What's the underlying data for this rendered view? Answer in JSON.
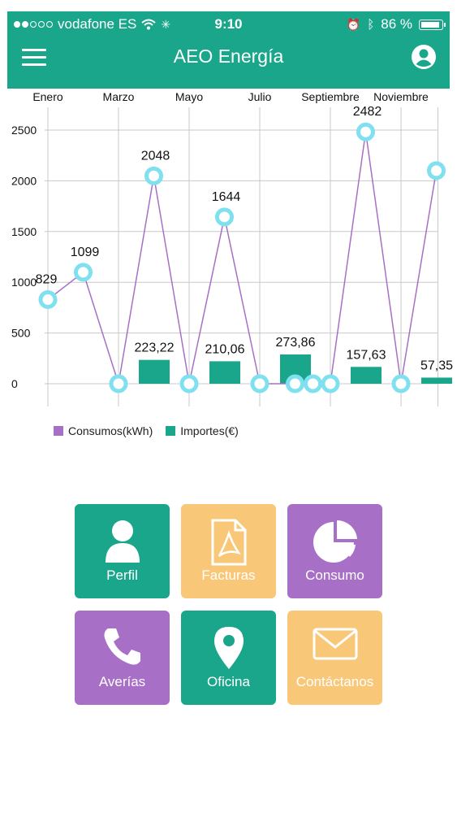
{
  "status_bar": {
    "carrier": "vodafone ES",
    "time": "9:10",
    "battery": "86 %"
  },
  "header": {
    "title": "AEO Energía",
    "menu_icon": "hamburger-menu-icon",
    "profile_icon": "user-circle-icon",
    "color": "#1aa68a"
  },
  "chart_data": {
    "type": "line+bar",
    "top_axis_labels": [
      "Enero",
      "Marzo",
      "Mayo",
      "Julio",
      "Septiembre",
      "Noviembre"
    ],
    "y_ticks": [
      "2500",
      "2000",
      "1500",
      "1000",
      "500",
      "0"
    ],
    "ylim": [
      0,
      2500
    ],
    "series": [
      {
        "name": "Consumos(kWh)",
        "type": "line",
        "color": "#a86fc6",
        "values": [
          829,
          1099,
          0,
          2048,
          0,
          1644,
          0,
          0,
          0,
          2482,
          0,
          2100
        ],
        "labels": [
          "829",
          "1099",
          "",
          "2048",
          "",
          "1644",
          "",
          "",
          "",
          "2482",
          "",
          ""
        ]
      },
      {
        "name": "Importes(€)",
        "type": "bar",
        "color": "#1aa68a",
        "bars": [
          {
            "month_index": 3,
            "value": 223.22,
            "label": "223,22"
          },
          {
            "month_index": 5,
            "value": 210.06,
            "label": "210,06"
          },
          {
            "month_index": 7,
            "value": 273.86,
            "label": "273,86"
          },
          {
            "month_index": 9,
            "value": 157.63,
            "label": "157,63"
          },
          {
            "month_index": 11,
            "value": 57.35,
            "label": "57,35"
          }
        ]
      }
    ],
    "grid": true
  },
  "legend": {
    "consumos": "Consumos(kWh)",
    "importes": "Importes(€)"
  },
  "menu": {
    "perfil": {
      "label": "Perfil",
      "icon": "user-icon",
      "color": "#1aa68a"
    },
    "facturas": {
      "label": "Facturas",
      "icon": "pdf-document-icon",
      "color": "#f8c778"
    },
    "consumo": {
      "label": "Consumo",
      "icon": "pie-chart-icon",
      "color": "#a86fc6"
    },
    "averias": {
      "label": "Averías",
      "icon": "phone-icon",
      "color": "#a86fc6"
    },
    "oficina": {
      "label": "Oficina",
      "icon": "location-pin-icon",
      "color": "#1aa68a"
    },
    "contactanos": {
      "label": "Contáctanos",
      "icon": "envelope-icon",
      "color": "#f8c778"
    }
  }
}
